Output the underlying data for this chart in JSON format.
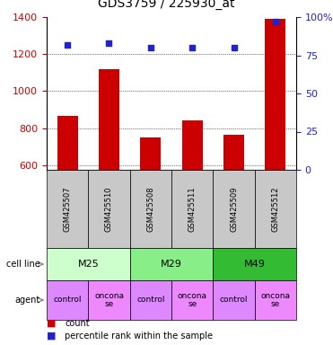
{
  "title": "GDS3759 / 225930_at",
  "samples": [
    "GSM425507",
    "GSM425510",
    "GSM425508",
    "GSM425511",
    "GSM425509",
    "GSM425512"
  ],
  "counts": [
    865,
    1120,
    750,
    840,
    765,
    1390
  ],
  "percentile_ranks": [
    82,
    83,
    80,
    80,
    80,
    97
  ],
  "ylim_left": [
    575,
    1400
  ],
  "ylim_right": [
    0,
    100
  ],
  "yticks_left": [
    600,
    800,
    1000,
    1200,
    1400
  ],
  "yticks_right": [
    0,
    25,
    50,
    75,
    100
  ],
  "bar_color": "#cc0000",
  "dot_color": "#2222cc",
  "cell_lines": [
    {
      "label": "M25",
      "span": [
        0,
        2
      ],
      "color": "#ccffcc"
    },
    {
      "label": "M29",
      "span": [
        2,
        4
      ],
      "color": "#88ee88"
    },
    {
      "label": "M49",
      "span": [
        4,
        6
      ],
      "color": "#33bb33"
    }
  ],
  "agent_colors": [
    "#dd88ff",
    "#ee88ff",
    "#dd88ff",
    "#ee88ff",
    "#dd88ff",
    "#ee88ff"
  ],
  "agent_labels": [
    "control",
    "oncona\nse",
    "control",
    "oncona\nse",
    "control",
    "oncona\nse"
  ],
  "sample_bg_color": "#c8c8c8",
  "left_label_color": "#cc0000",
  "right_label_color": "#2222cc",
  "legend_count_color": "#cc0000",
  "legend_pct_color": "#2222cc"
}
